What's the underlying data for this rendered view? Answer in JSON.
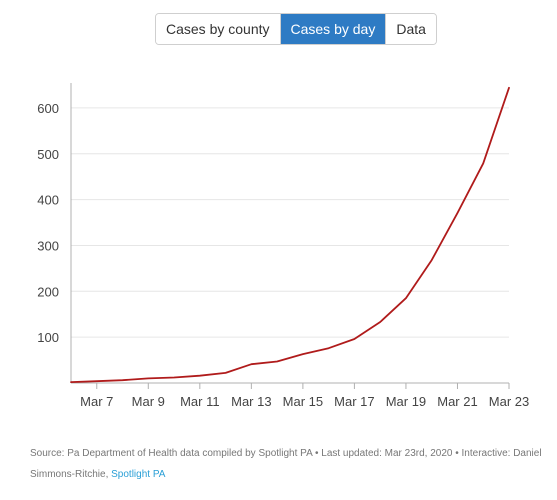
{
  "tabs": [
    {
      "label": "Cases by county",
      "active": false
    },
    {
      "label": "Cases by day",
      "active": true
    },
    {
      "label": "Data",
      "active": false
    }
  ],
  "colors": {
    "active_tab": "#2e7bc4",
    "line": "#b01b1b",
    "grid": "#e6e6e6",
    "axis": "#b0b0b0",
    "tick_text": "#444444",
    "link": "#2a9fd6"
  },
  "chart_data": {
    "type": "line",
    "title": "",
    "xlabel": "",
    "ylabel": "",
    "x": [
      "Mar 6",
      "Mar 7",
      "Mar 8",
      "Mar 9",
      "Mar 10",
      "Mar 11",
      "Mar 12",
      "Mar 13",
      "Mar 14",
      "Mar 15",
      "Mar 16",
      "Mar 17",
      "Mar 18",
      "Mar 19",
      "Mar 20",
      "Mar 21",
      "Mar 22",
      "Mar 23"
    ],
    "x_tick_labels": [
      "Mar 7",
      "Mar 9",
      "Mar 11",
      "Mar 13",
      "Mar 15",
      "Mar 17",
      "Mar 19",
      "Mar 21",
      "Mar 23"
    ],
    "series": [
      {
        "values": [
          2,
          4,
          6,
          10,
          12,
          16,
          22,
          41,
          47,
          63,
          76,
          96,
          133,
          185,
          268,
          371,
          479,
          644
        ]
      }
    ],
    "ylim": [
      0,
      650
    ],
    "y_ticks": [
      100,
      200,
      300,
      400,
      500,
      600
    ],
    "grid": true
  },
  "source": {
    "text": "Source: Pa Department of Health data compiled by Spotlight PA • Last updated: Mar 23rd, 2020 • Interactive: Daniel Simmons-Ritchie, ",
    "link_label": "Spotlight PA"
  }
}
